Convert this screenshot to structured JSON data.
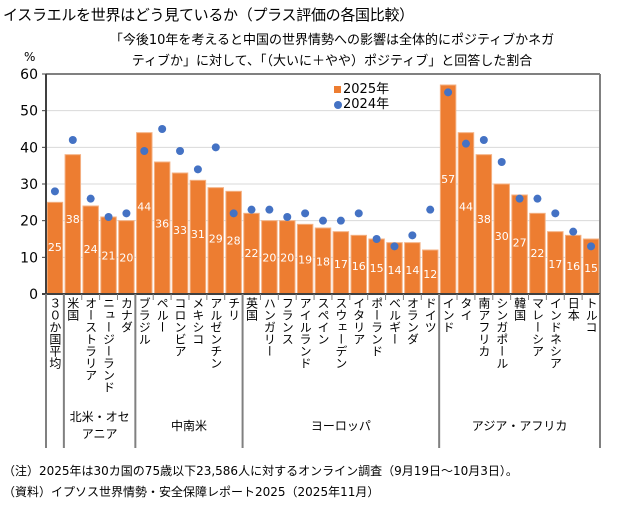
{
  "title": "イスラエルを世界はどう見ているか（プラス評価の各国比較）",
  "subtitle_line1": "「今後10年を考えると中国の世界情勢への影響は全体的にポジティブかネガ",
  "subtitle_line2": "ティブか」に対して、「（大いに＋やや）ポジティブ」と回答した割合",
  "notes": {
    "note": "（注）2025年は30カ国の75歳以下23,586人に対するオンライン調査（9月19日～10月3日）。",
    "source": "（資料）イプソス世界情勢・安全保障レポート2025（2025年11月）"
  },
  "chart_data": {
    "type": "bar",
    "title": "イスラエルを世界はどう見ているか（プラス評価の各国比較）",
    "ylabel": "%",
    "xlabel": "",
    "ylim": [
      0,
      60
    ],
    "yticks": [
      0,
      10,
      20,
      30,
      40,
      50,
      60
    ],
    "grid": true,
    "legend_position": "top-center",
    "categories": [
      "３０か国平均",
      "米国",
      "オーストラリア",
      "ニュージーランド",
      "カナダ",
      "ブラジル",
      "ペルー",
      "コロンビア",
      "メキシコ",
      "アルゼンチン",
      "チリ",
      "英国",
      "ハンガリー",
      "フランス",
      "アイルランド",
      "スペイン",
      "スウェーデン",
      "イタリア",
      "ポーランド",
      "ベルギー",
      "オランダ",
      "ドイツ",
      "インド",
      "タイ",
      "南アフリカ",
      "シンガポール",
      "韓国",
      "マレーシア",
      "インドネシア",
      "日本",
      "トルコ"
    ],
    "groups": [
      {
        "label": "",
        "count": 1
      },
      {
        "label": "北米・オセアニア",
        "count": 4
      },
      {
        "label": "中南米",
        "count": 6
      },
      {
        "label": "ヨーロッパ",
        "count": 11
      },
      {
        "label": "アジア・アフリカ",
        "count": 9
      }
    ],
    "series": [
      {
        "name": "2025年",
        "type": "bar",
        "color": "#ED7D31",
        "values": [
          25,
          38,
          24,
          21,
          20,
          44,
          36,
          33,
          31,
          29,
          28,
          22,
          20,
          20,
          19,
          18,
          17,
          16,
          15,
          14,
          14,
          12,
          57,
          44,
          38,
          30,
          27,
          22,
          17,
          16,
          15
        ]
      },
      {
        "name": "2024年",
        "type": "scatter",
        "color": "#4472C4",
        "values": [
          28,
          42,
          26,
          21,
          22,
          39,
          45,
          39,
          34,
          40,
          22,
          23,
          23,
          21,
          22,
          20,
          20,
          22,
          15,
          13,
          16,
          23,
          55,
          41,
          42,
          36,
          26,
          26,
          22,
          17,
          13
        ]
      }
    ]
  }
}
